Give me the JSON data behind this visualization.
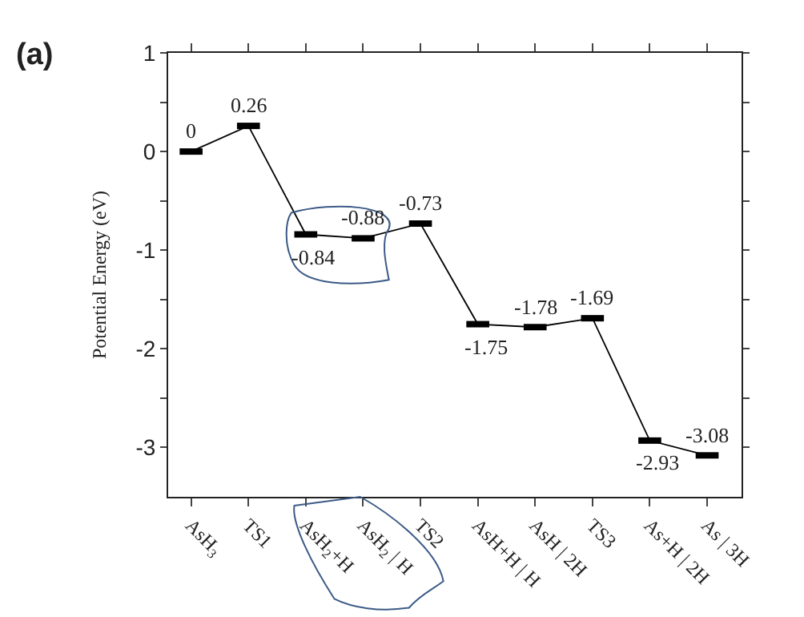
{
  "chart_data": {
    "type": "line",
    "title": "(a)",
    "ylabel": "Potential Energy (eV)",
    "categories": [
      "AsH$_{3}$",
      "TS1",
      "AsH$_{2}$+H",
      "AsH$_{2}$ | H",
      "TS2",
      "AsH+H | H",
      "AsH | 2H",
      "TS3",
      "As+H | 2H",
      "As | 3H"
    ],
    "series": [
      {
        "color": "#000000",
        "values": [
          0,
          0.26,
          -0.84,
          -0.88,
          -0.73,
          -1.75,
          -1.78,
          -1.69,
          -2.93,
          -3.08
        ]
      }
    ],
    "ylim": [
      -3.5,
      1
    ],
    "yticks": [
      1,
      {
        "value": 0.5,
        "label": null
      },
      0,
      {
        "value": -0.5,
        "label": null
      },
      -1,
      {
        "value": -1.5,
        "label": null
      },
      -2,
      {
        "value": -2.5,
        "label": null
      },
      -3
    ],
    "data_labels": true
  }
}
